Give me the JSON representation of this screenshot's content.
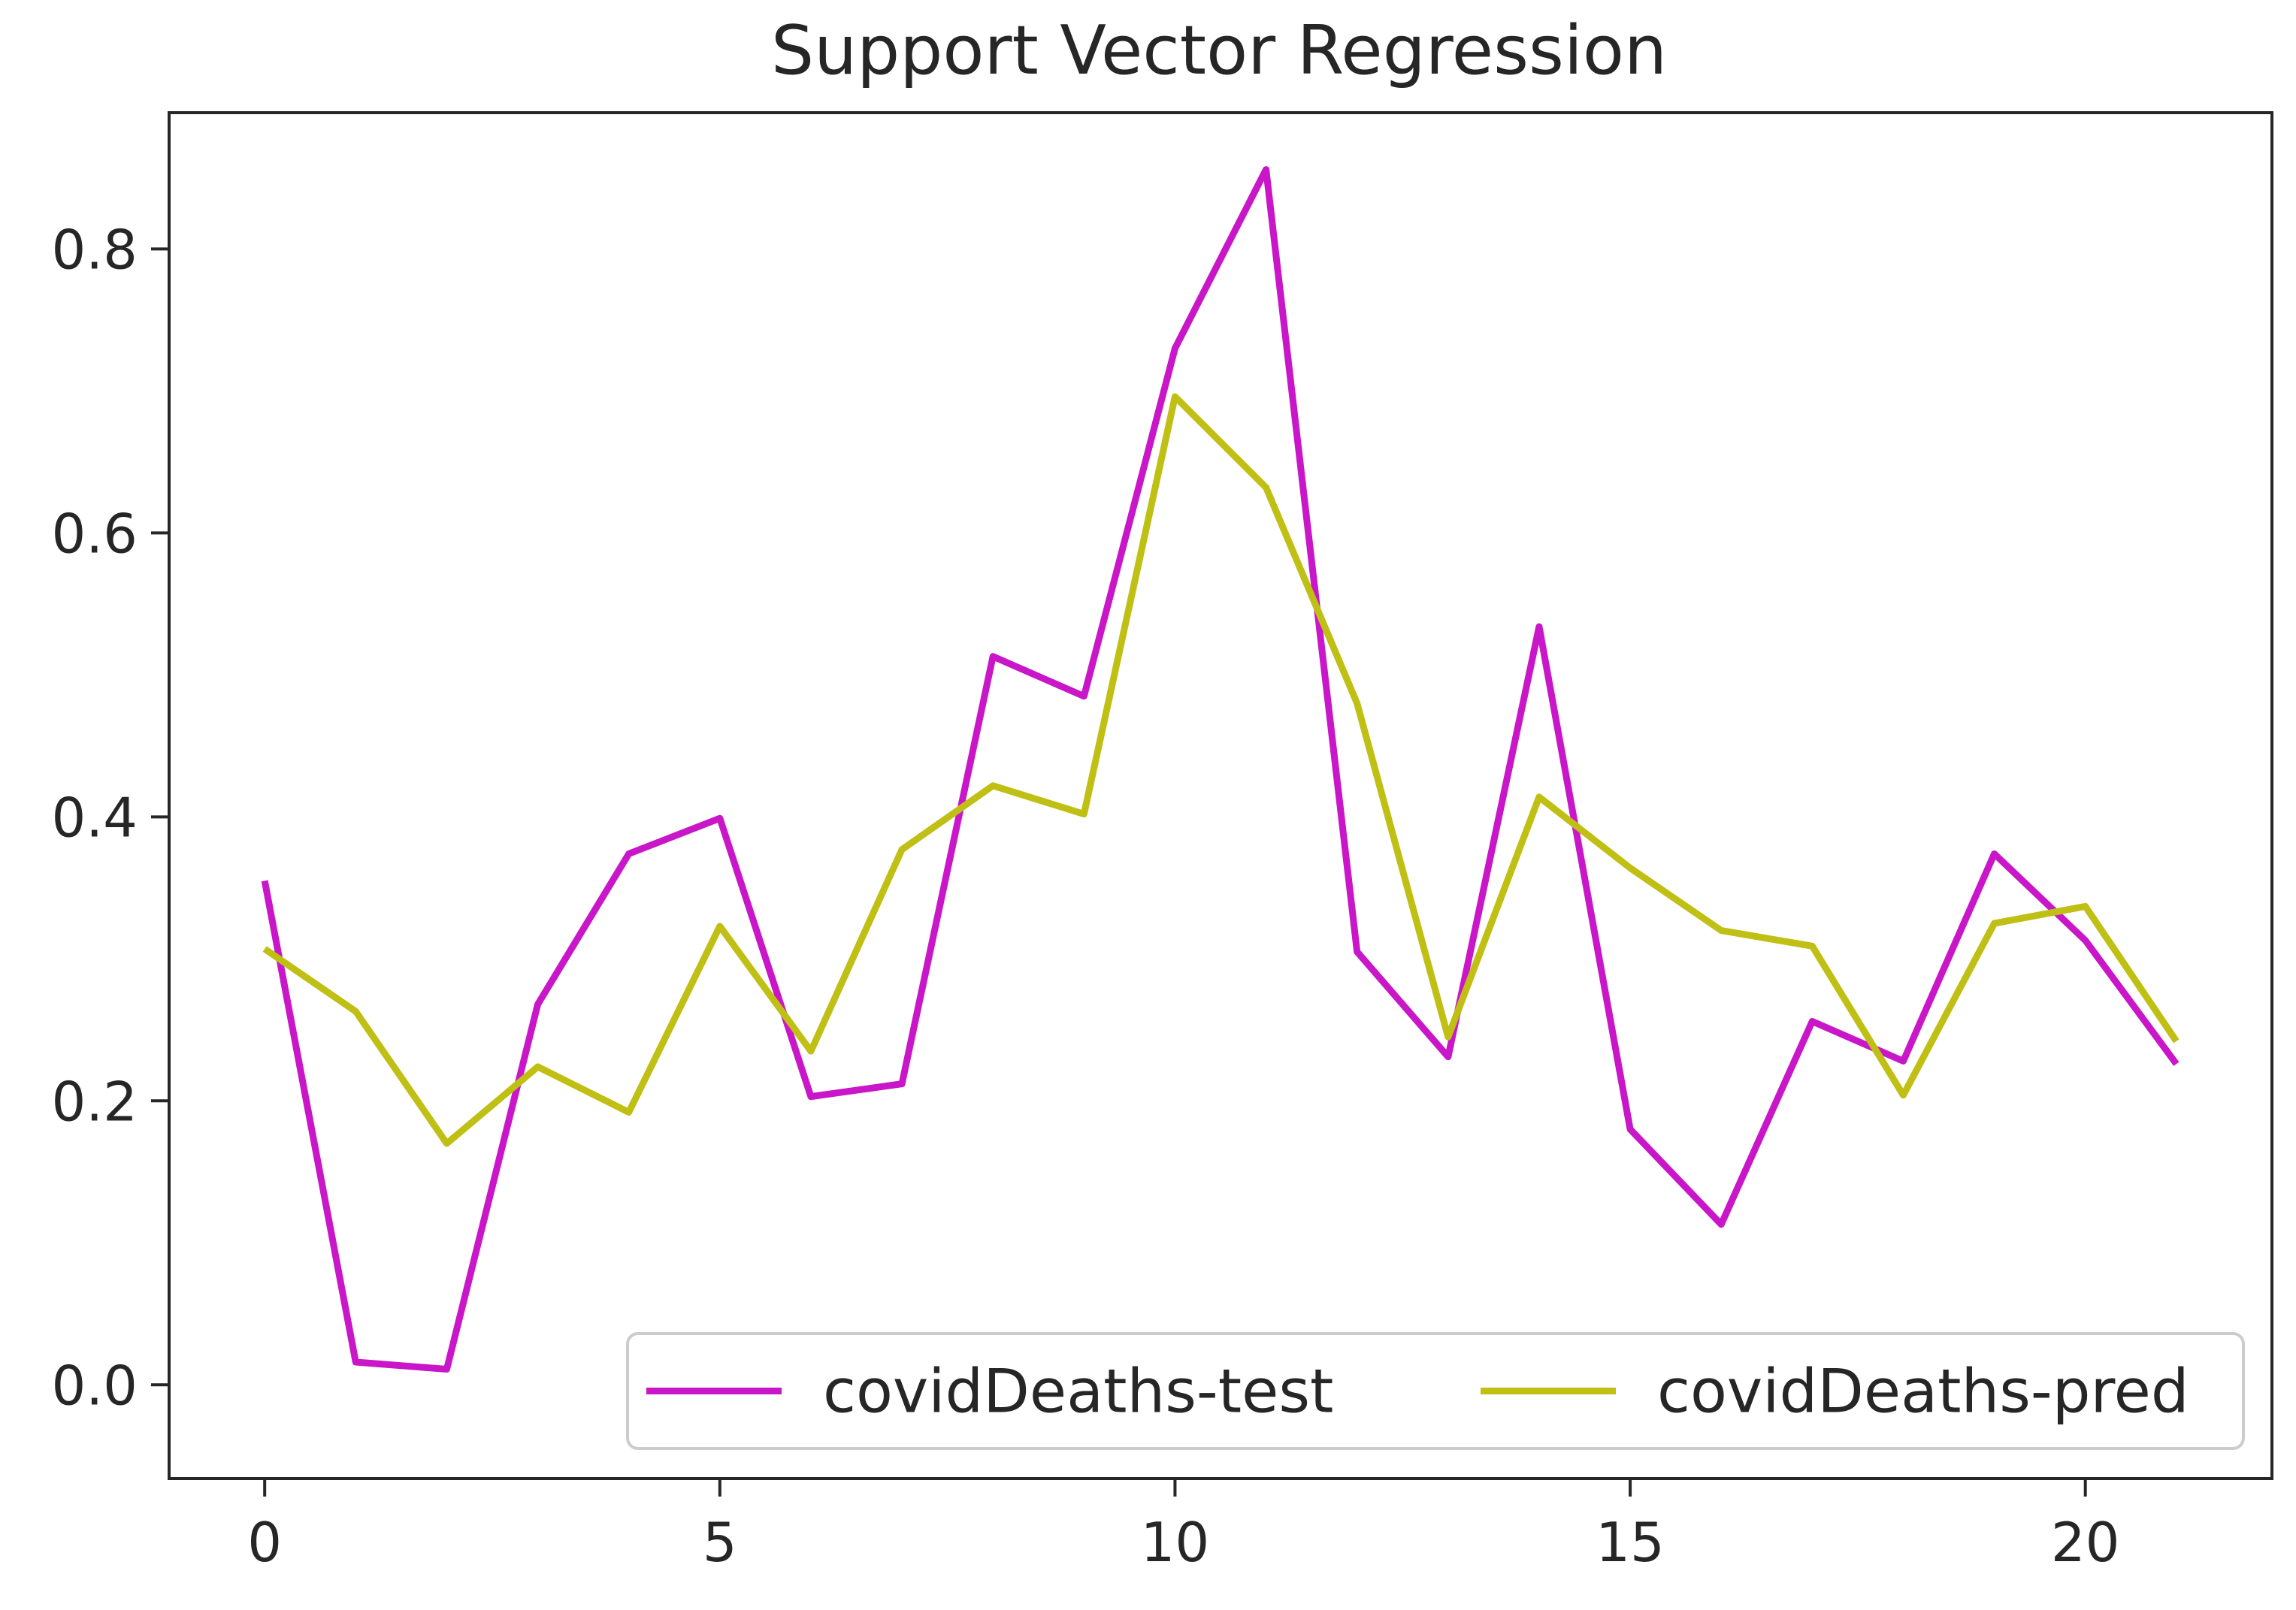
{
  "chart_data": {
    "type": "line",
    "title": "Support Vector Regression",
    "xlabel": "",
    "ylabel": "",
    "x": [
      0,
      1,
      2,
      3,
      4,
      5,
      6,
      7,
      8,
      9,
      10,
      11,
      12,
      13,
      14,
      15,
      16,
      17,
      18,
      19,
      20,
      21
    ],
    "xlim": [
      -1.05,
      22.05
    ],
    "ylim": [
      -0.066,
      0.896
    ],
    "xticks": [
      0,
      5,
      10,
      15,
      20
    ],
    "xtick_labels": [
      "0",
      "5",
      "10",
      "15",
      "20"
    ],
    "yticks": [
      0.0,
      0.2,
      0.4,
      0.6,
      0.8
    ],
    "ytick_labels": [
      "0.0",
      "0.2",
      "0.4",
      "0.6",
      "0.8"
    ],
    "grid": false,
    "legend_position": "lower-right",
    "series": [
      {
        "name": "covidDeaths-test",
        "color": "#c816c8",
        "values": [
          0.355,
          0.016,
          0.011,
          0.268,
          0.374,
          0.399,
          0.203,
          0.212,
          0.513,
          0.485,
          0.73,
          0.856,
          0.305,
          0.231,
          0.534,
          0.18,
          0.113,
          0.256,
          0.228,
          0.374,
          0.313,
          0.226
        ]
      },
      {
        "name": "covidDeaths-pred",
        "color": "#bfbf14",
        "values": [
          0.307,
          0.263,
          0.17,
          0.224,
          0.192,
          0.323,
          0.235,
          0.377,
          0.422,
          0.402,
          0.696,
          0.632,
          0.48,
          0.245,
          0.414,
          0.364,
          0.32,
          0.309,
          0.204,
          0.325,
          0.337,
          0.242
        ]
      }
    ]
  }
}
